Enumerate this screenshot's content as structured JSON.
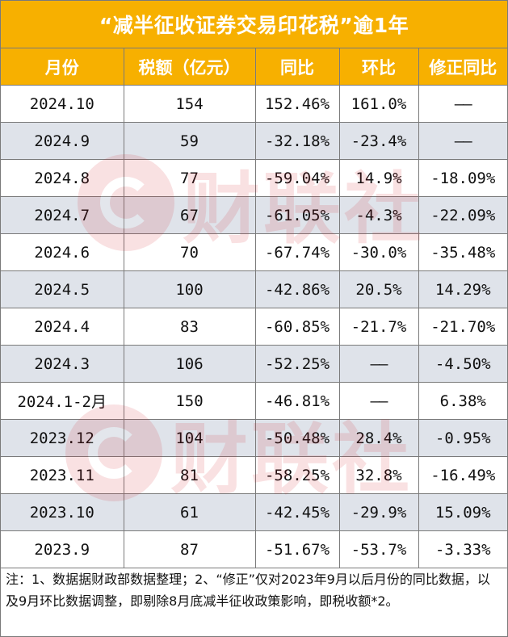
{
  "title": "“减半征收证券交易印花税”逾1年",
  "headers": [
    "月份",
    "税额（亿元）",
    "同比",
    "环比",
    "修正同比"
  ],
  "rows": [
    [
      "2024.10",
      "154",
      "152.46%",
      "161.0%",
      "——"
    ],
    [
      "2024.9",
      "59",
      "-32.18%",
      "-23.4%",
      "——"
    ],
    [
      "2024.8",
      "77",
      "-59.04%",
      "14.9%",
      "-18.09%"
    ],
    [
      "2024.7",
      "67",
      "-61.05%",
      "-4.3%",
      "-22.09%"
    ],
    [
      "2024.6",
      "70",
      "-67.74%",
      "-30.0%",
      "-35.48%"
    ],
    [
      "2024.5",
      "100",
      "-42.86%",
      "20.5%",
      "14.29%"
    ],
    [
      "2024.4",
      "83",
      "-60.85%",
      "-21.7%",
      "-21.70%"
    ],
    [
      "2024.3",
      "106",
      "-52.25%",
      "——",
      "-4.50%"
    ],
    [
      "2024.1-2月",
      "150",
      "-46.81%",
      "——",
      "6.38%"
    ],
    [
      "2023.12",
      "104",
      "-50.48%",
      "28.4%",
      "-0.95%"
    ],
    [
      "2023.11",
      "81",
      "-58.25%",
      "32.8%",
      "-16.49%"
    ],
    [
      "2023.10",
      "61",
      "-42.45%",
      "-29.9%",
      "15.09%"
    ],
    [
      "2023.9",
      "87",
      "-51.67%",
      "-53.7%",
      "-3.33%"
    ]
  ],
  "note": "注：1、数据据财政部数据整理；2、“修正”仅对2023年9月以后月份的同比数据，以及9月环比数据调整，即剔除8月底减半征收政策影响，即税收额*2。",
  "watermark": "财联社",
  "colors": {
    "header_bg": "#f7b000",
    "header_text": "#ffffff",
    "alt_row_bg": "#dfe3ea",
    "watermark": "#d4202c"
  }
}
